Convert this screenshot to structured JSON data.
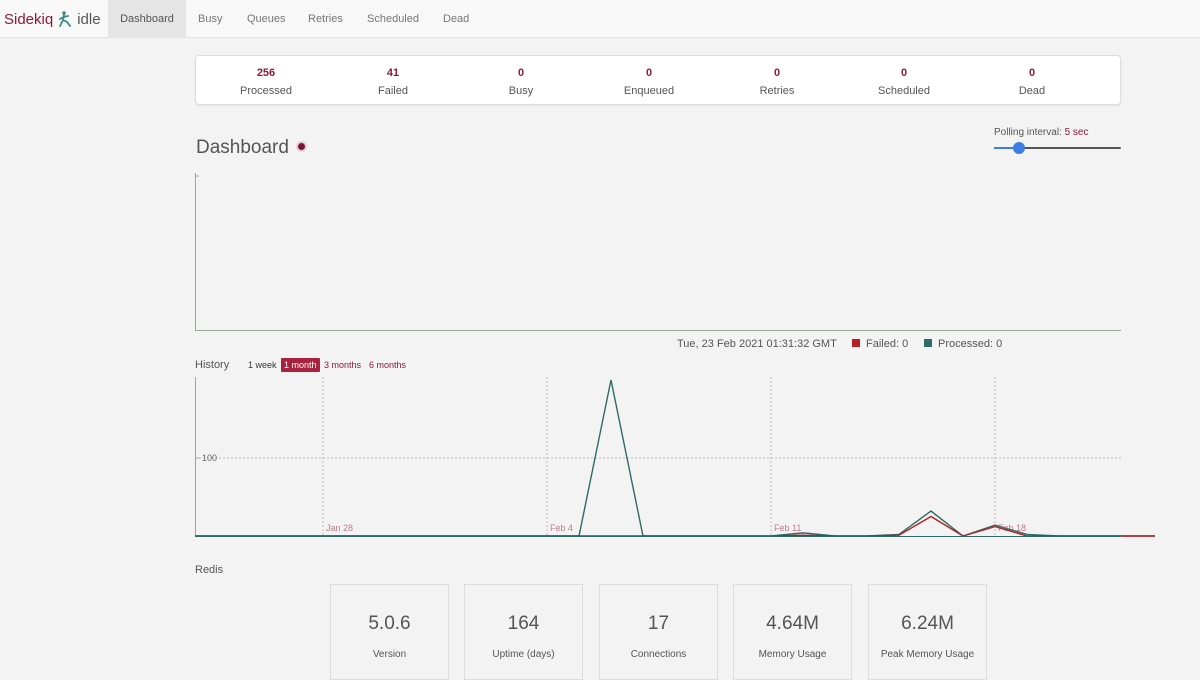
{
  "brand": {
    "name": "Sidekiq",
    "status": "idle",
    "logo_icon": "sidekiq-kicker-icon"
  },
  "nav": [
    {
      "label": "Dashboard",
      "active": true
    },
    {
      "label": "Busy"
    },
    {
      "label": "Queues"
    },
    {
      "label": "Retries"
    },
    {
      "label": "Scheduled"
    },
    {
      "label": "Dead"
    }
  ],
  "summary": [
    {
      "count": "256",
      "label": "Processed"
    },
    {
      "count": "41",
      "label": "Failed"
    },
    {
      "count": "0",
      "label": "Busy"
    },
    {
      "count": "0",
      "label": "Enqueued"
    },
    {
      "count": "0",
      "label": "Retries"
    },
    {
      "count": "0",
      "label": "Scheduled"
    },
    {
      "count": "0",
      "label": "Dead"
    }
  ],
  "dashboard": {
    "title": "Dashboard",
    "polling_label": "Polling interval:",
    "polling_value": "5 sec",
    "polling_fraction": 0.2
  },
  "realtime": {
    "timestamp": "Tue, 23 Feb 2021 01:31:32 GMT",
    "failed_label": "Failed: 0",
    "processed_label": "Processed: 0"
  },
  "history": {
    "label": "History",
    "ranges": [
      {
        "label": "1 week"
      },
      {
        "label": "1 month",
        "active": true
      },
      {
        "label": "3 months"
      },
      {
        "label": "6 months"
      }
    ]
  },
  "colors": {
    "accent": "#8c1a3c",
    "failed": "#b22222",
    "processed": "#2f6b66",
    "slider": "#3d7de4"
  },
  "chart_data": {
    "type": "line",
    "y_tick_label": "100",
    "x_tick_labels": [
      "Jan 28",
      "Feb 4",
      "Feb 11",
      "Feb 18"
    ],
    "x": [
      "Jan 24",
      "Jan 25",
      "Jan 26",
      "Jan 27",
      "Jan 28",
      "Jan 29",
      "Jan 30",
      "Jan 31",
      "Feb 1",
      "Feb 2",
      "Feb 3",
      "Feb 4",
      "Feb 5",
      "Feb 6",
      "Feb 7",
      "Feb 8",
      "Feb 9",
      "Feb 10",
      "Feb 11",
      "Feb 12",
      "Feb 13",
      "Feb 14",
      "Feb 15",
      "Feb 16",
      "Feb 17",
      "Feb 18",
      "Feb 19",
      "Feb 20",
      "Feb 21",
      "Feb 22",
      "Feb 23"
    ],
    "ylim": [
      0,
      200
    ],
    "series": [
      {
        "name": "Failed",
        "color": "#b22222",
        "values": [
          0,
          0,
          0,
          0,
          0,
          0,
          0,
          0,
          0,
          0,
          0,
          0,
          0,
          0,
          0,
          0,
          0,
          0,
          0,
          1,
          0,
          0,
          1,
          25,
          0,
          12,
          0,
          0,
          0,
          0,
          0
        ]
      },
      {
        "name": "Processed",
        "color": "#2f6b66",
        "values": [
          0,
          0,
          0,
          0,
          0,
          0,
          0,
          0,
          0,
          0,
          0,
          0,
          0,
          200,
          0,
          0,
          0,
          0,
          0,
          4,
          0,
          0,
          2,
          32,
          0,
          14,
          2,
          0,
          0,
          0,
          0
        ]
      }
    ]
  },
  "redis": {
    "label": "Redis",
    "stats": [
      {
        "value": "5.0.6",
        "label": "Version"
      },
      {
        "value": "164",
        "label": "Uptime (days)"
      },
      {
        "value": "17",
        "label": "Connections"
      },
      {
        "value": "4.64M",
        "label": "Memory Usage"
      },
      {
        "value": "6.24M",
        "label": "Peak Memory Usage"
      }
    ]
  }
}
